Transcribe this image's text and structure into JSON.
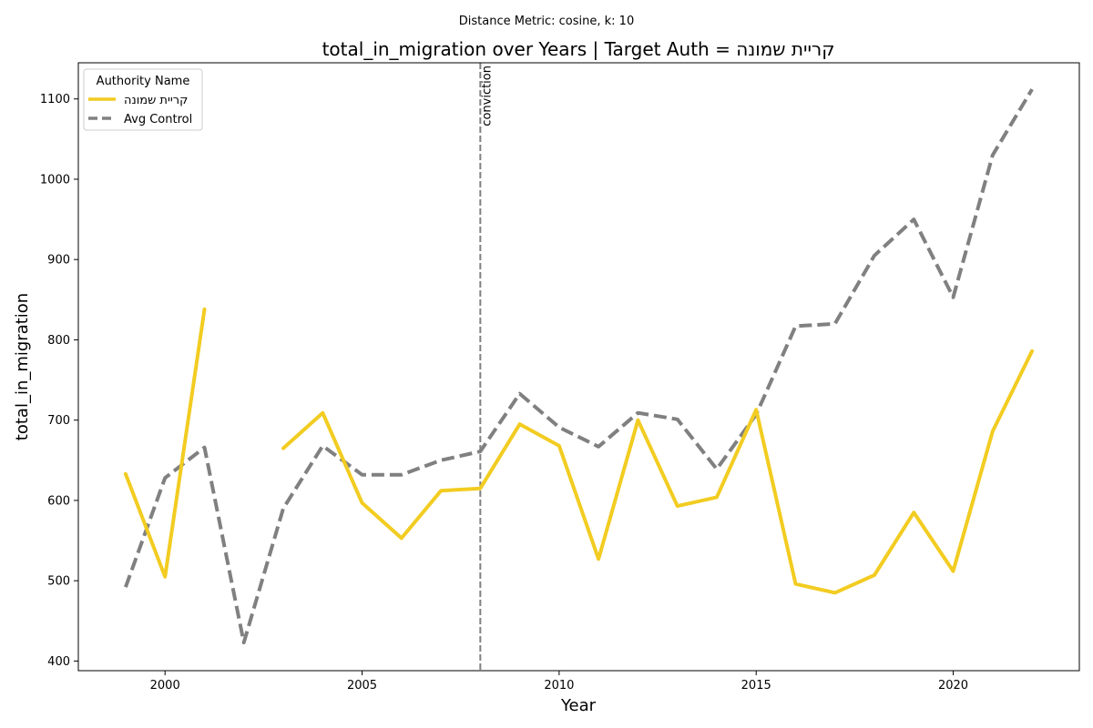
{
  "chart_data": {
    "type": "line",
    "suptitle": "Distance Metric: cosine, k: 10",
    "title": "total_in_migration over Years | Target Auth = קריית שמונה",
    "xlabel": "Year",
    "ylabel": "total_in_migration",
    "xlim": [
      1997.8,
      2023.2
    ],
    "ylim": [
      388,
      1145
    ],
    "xticks": [
      2000,
      2005,
      2010,
      2015,
      2020
    ],
    "yticks": [
      400,
      500,
      600,
      700,
      800,
      900,
      1000,
      1100
    ],
    "grid": false,
    "legend": {
      "title": "Authority Name",
      "placement": "upper-left"
    },
    "vline": {
      "x": 2008,
      "label": "conviction",
      "color": "#808080"
    },
    "series": [
      {
        "name": "קריית שמונה",
        "color": "#f2cc21",
        "style": "solid",
        "x": [
          1999,
          2000,
          2001,
          2002,
          2003,
          2004,
          2005,
          2006,
          2007,
          2008,
          2009,
          2010,
          2011,
          2012,
          2013,
          2014,
          2015,
          2016,
          2017,
          2018,
          2019,
          2020,
          2021,
          2022
        ],
        "values": [
          633,
          505,
          838,
          null,
          665,
          709,
          597,
          553,
          612,
          615,
          695,
          668,
          527,
          700,
          593,
          604,
          713,
          496,
          485,
          507,
          585,
          512,
          686,
          786
        ]
      },
      {
        "name": "Avg Control",
        "color": "#808080",
        "style": "dashed",
        "x": [
          1999,
          2000,
          2001,
          2002,
          2003,
          2004,
          2005,
          2006,
          2007,
          2008,
          2009,
          2010,
          2011,
          2012,
          2013,
          2014,
          2015,
          2016,
          2017,
          2018,
          2019,
          2020,
          2021,
          2022
        ],
        "values": [
          492,
          628,
          666,
          423,
          590,
          668,
          632,
          632,
          650,
          661,
          733,
          691,
          667,
          709,
          701,
          639,
          707,
          817,
          820,
          905,
          950,
          853,
          1030,
          1112
        ]
      }
    ]
  }
}
